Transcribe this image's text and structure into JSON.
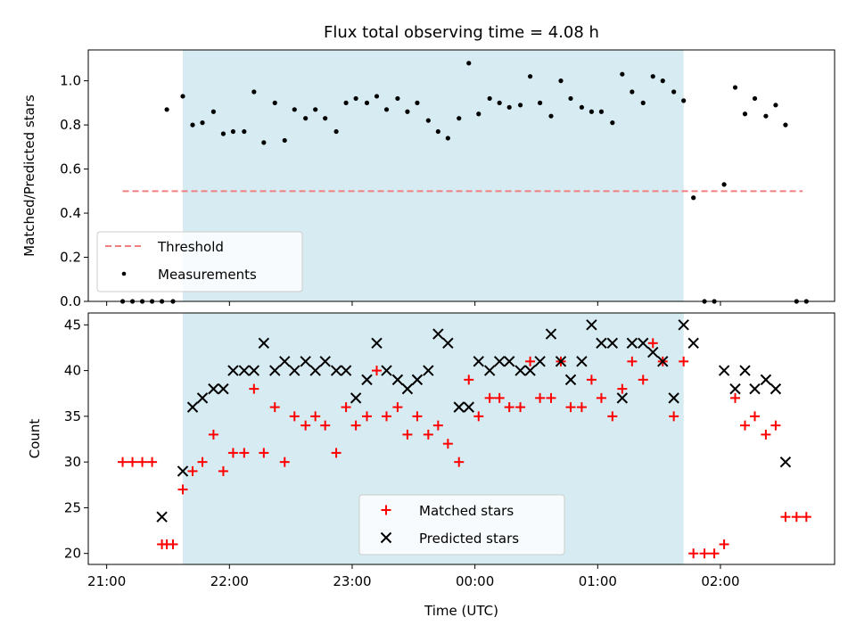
{
  "chart_data": [
    {
      "type": "scatter",
      "title": "Flux total observing time = 4.08 h",
      "xlabel": "",
      "ylabel": "Matched/Predicted stars",
      "xlim_hours": [
        20.85,
        26.93
      ],
      "ylim": [
        0,
        1.14
      ],
      "yticks": [
        0.0,
        0.2,
        0.4,
        0.6,
        0.8,
        1.0
      ],
      "ytick_labels": [
        "0.0",
        "0.2",
        "0.4",
        "0.6",
        "0.8",
        "1.0"
      ],
      "shaded_span_hours": [
        21.62,
        25.7
      ],
      "shaded_color": "#add8e6",
      "threshold": {
        "name": "Threshold",
        "value": 0.5,
        "x_range_hours": [
          21.13,
          26.67
        ],
        "color": "#f08080"
      },
      "legend": {
        "placement": "lower left",
        "entries": [
          "Threshold",
          "Measurements"
        ]
      },
      "series": [
        {
          "name": "Measurements",
          "color": "#000000",
          "x_hours": [
            21.13,
            21.21,
            21.29,
            21.37,
            21.45,
            21.49,
            21.54,
            21.62,
            21.7,
            21.78,
            21.87,
            21.95,
            22.03,
            22.12,
            22.2,
            22.28,
            22.37,
            22.45,
            22.53,
            22.62,
            22.7,
            22.78,
            22.87,
            22.95,
            23.03,
            23.12,
            23.2,
            23.28,
            23.37,
            23.45,
            23.53,
            23.62,
            23.7,
            23.78,
            23.87,
            23.95,
            24.03,
            24.12,
            24.2,
            24.28,
            24.37,
            24.45,
            24.53,
            24.62,
            24.7,
            24.78,
            24.87,
            24.95,
            25.03,
            25.12,
            25.2,
            25.28,
            25.37,
            25.45,
            25.53,
            25.62,
            25.7,
            25.78,
            25.87,
            25.95,
            26.03,
            26.12,
            26.2,
            26.28,
            26.37,
            26.45,
            26.53,
            26.62,
            26.7
          ],
          "y": [
            0.0,
            0.0,
            0.0,
            0.0,
            0.0,
            0.87,
            0.0,
            0.93,
            0.8,
            0.81,
            0.86,
            0.76,
            0.77,
            0.77,
            0.95,
            0.72,
            0.9,
            0.73,
            0.87,
            0.83,
            0.87,
            0.83,
            0.77,
            0.9,
            0.92,
            0.9,
            0.93,
            0.87,
            0.92,
            0.86,
            0.9,
            0.82,
            0.77,
            0.74,
            0.83,
            1.08,
            0.85,
            0.92,
            0.9,
            0.88,
            0.89,
            1.02,
            0.9,
            0.84,
            1.0,
            0.92,
            0.88,
            0.86,
            0.86,
            0.81,
            1.03,
            0.95,
            0.9,
            1.02,
            1.0,
            0.95,
            0.91,
            0.47,
            0.0,
            0.0,
            0.53,
            0.97,
            0.85,
            0.92,
            0.84,
            0.89,
            0.8,
            0.0,
            0.0
          ]
        }
      ]
    },
    {
      "type": "scatter",
      "title": "",
      "xlabel": "Time (UTC)",
      "ylabel": "Count",
      "xlim_hours": [
        20.85,
        26.93
      ],
      "ylim": [
        18.8,
        46.3
      ],
      "yticks": [
        20,
        25,
        30,
        35,
        40,
        45
      ],
      "ytick_labels": [
        "20",
        "25",
        "30",
        "35",
        "40",
        "45"
      ],
      "xticks_hours": [
        21,
        22,
        23,
        24,
        25,
        26
      ],
      "xtick_labels": [
        "21:00",
        "22:00",
        "23:00",
        "00:00",
        "01:00",
        "02:00"
      ],
      "shaded_span_hours": [
        21.62,
        25.7
      ],
      "shaded_color": "#add8e6",
      "legend": {
        "placement": "lower center",
        "entries": [
          "Matched stars",
          "Predicted stars"
        ]
      },
      "series": [
        {
          "name": "Matched stars",
          "marker": "+",
          "color": "#ff0000",
          "x_hours": [
            21.13,
            21.21,
            21.29,
            21.37,
            21.45,
            21.49,
            21.54,
            21.62,
            21.7,
            21.78,
            21.87,
            21.95,
            22.03,
            22.12,
            22.2,
            22.28,
            22.37,
            22.45,
            22.53,
            22.62,
            22.7,
            22.78,
            22.87,
            22.95,
            23.03,
            23.12,
            23.2,
            23.28,
            23.37,
            23.45,
            23.53,
            23.62,
            23.7,
            23.78,
            23.87,
            23.95,
            24.03,
            24.12,
            24.2,
            24.28,
            24.37,
            24.45,
            24.53,
            24.62,
            24.7,
            24.78,
            24.87,
            24.95,
            25.03,
            25.12,
            25.2,
            25.28,
            25.37,
            25.45,
            25.53,
            25.62,
            25.7,
            25.78,
            25.87,
            25.95,
            26.03,
            26.12,
            26.2,
            26.28,
            26.37,
            26.45,
            26.53,
            26.62,
            26.7
          ],
          "y": [
            30,
            30,
            30,
            30,
            21,
            21,
            21,
            27,
            29,
            30,
            33,
            29,
            31,
            31,
            38,
            31,
            36,
            30,
            35,
            34,
            35,
            34,
            31,
            36,
            34,
            35,
            40,
            35,
            36,
            33,
            35,
            33,
            34,
            32,
            30,
            39,
            35,
            37,
            37,
            36,
            36,
            41,
            37,
            37,
            41,
            36,
            36,
            39,
            37,
            35,
            38,
            41,
            39,
            43,
            41,
            35,
            41,
            20,
            20,
            20,
            21,
            37,
            34,
            35,
            33,
            34,
            24,
            24,
            24
          ]
        },
        {
          "name": "Predicted stars",
          "marker": "x",
          "color": "#000000",
          "x_hours": [
            21.45,
            21.62,
            21.7,
            21.78,
            21.87,
            21.95,
            22.03,
            22.12,
            22.2,
            22.28,
            22.37,
            22.45,
            22.53,
            22.62,
            22.7,
            22.78,
            22.87,
            22.95,
            23.03,
            23.12,
            23.2,
            23.28,
            23.37,
            23.45,
            23.53,
            23.62,
            23.7,
            23.78,
            23.87,
            23.95,
            24.03,
            24.12,
            24.2,
            24.28,
            24.37,
            24.45,
            24.53,
            24.62,
            24.7,
            24.78,
            24.87,
            24.95,
            25.03,
            25.12,
            25.2,
            25.28,
            25.37,
            25.45,
            25.53,
            25.62,
            25.7,
            25.78,
            26.03,
            26.12,
            26.2,
            26.28,
            26.37,
            26.45,
            26.53
          ],
          "y": [
            24,
            29,
            36,
            37,
            38,
            38,
            40,
            40,
            40,
            43,
            40,
            41,
            40,
            41,
            40,
            41,
            40,
            40,
            37,
            39,
            43,
            40,
            39,
            38,
            39,
            40,
            44,
            43,
            36,
            36,
            41,
            40,
            41,
            41,
            40,
            40,
            41,
            44,
            41,
            39,
            41,
            45,
            43,
            43,
            37,
            43,
            43,
            42,
            41,
            37,
            45,
            43,
            40,
            38,
            40,
            38,
            39,
            38,
            30
          ]
        }
      ]
    }
  ]
}
